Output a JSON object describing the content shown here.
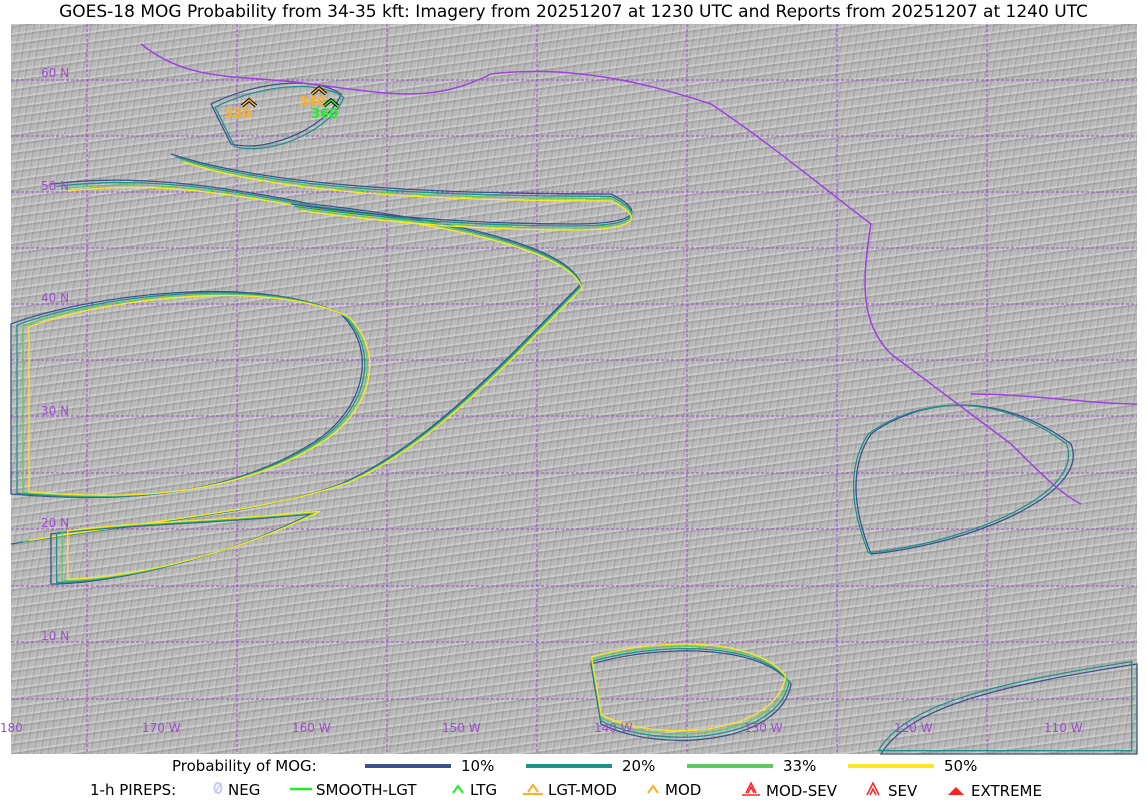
{
  "title": "GOES-18 MOG Probability from 34-35 kft: Imagery from 20251207 at 1230 UTC and Reports from 20251207 at 1240 UTC",
  "map": {
    "lat_labels": [
      "60 N",
      "50 N",
      "40 N",
      "30 N",
      "20 N",
      "10 N"
    ],
    "lon_labels": [
      "180",
      "170 W",
      "160 W",
      "150 W",
      "140 W",
      "130 W",
      "120 W",
      "110 W"
    ],
    "grid_color": "#a24ad6",
    "pireps": [
      {
        "level": "320",
        "color": "#ffb020",
        "type": "MOD"
      },
      {
        "level": "340",
        "color": "#ffb020",
        "type": "MOD"
      },
      {
        "level": "360",
        "color": "#22ee22",
        "type": "LTG"
      }
    ]
  },
  "legend": {
    "prob_label": "Probability of MOG:",
    "prob_items": [
      {
        "label": "10%",
        "color": "#3b528b"
      },
      {
        "label": "20%",
        "color": "#21918c"
      },
      {
        "label": "33%",
        "color": "#5ec962"
      },
      {
        "label": "50%",
        "color": "#fde725"
      }
    ],
    "pirep_label": "1-h PIREPS:",
    "pirep_items": [
      {
        "label": "NEG",
        "icon": "slashed-circle-icon",
        "color": "#c8c8ff"
      },
      {
        "label": "SMOOTH-LGT",
        "icon": "dash-icon",
        "color": "#22ee22"
      },
      {
        "label": "LTG",
        "icon": "caret-icon",
        "color": "#22ee22"
      },
      {
        "label": "LGT-MOD",
        "icon": "caret-bar-icon",
        "color": "#ffb020"
      },
      {
        "label": "MOD",
        "icon": "caret-icon",
        "color": "#ffb020"
      },
      {
        "label": "MOD-SEV",
        "icon": "double-caret-bar-icon",
        "color": "#ff2020"
      },
      {
        "label": "SEV",
        "icon": "double-caret-icon",
        "color": "#ff2020"
      },
      {
        "label": "EXTREME",
        "icon": "filled-triangle-icon",
        "color": "#ff2020"
      }
    ]
  }
}
